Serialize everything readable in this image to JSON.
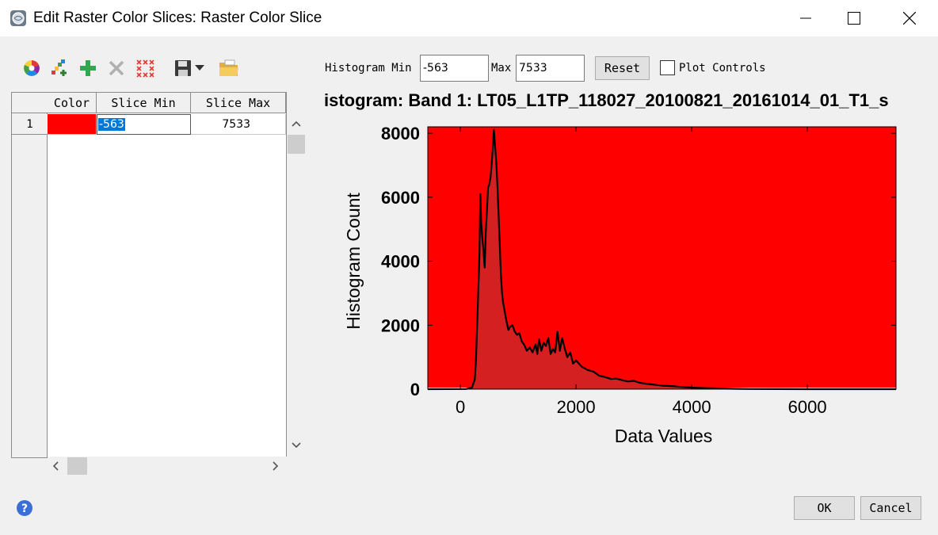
{
  "window": {
    "title": "Edit Raster Color Slices: Raster Color Slice",
    "icon": "app-globe-icon",
    "controls": [
      "minimize-icon",
      "maximize-icon",
      "close-icon"
    ]
  },
  "toolbar": {
    "icons": [
      "color-wheel-icon",
      "color-ramp-icon",
      "add-icon",
      "delete-icon",
      "clear-all-icon",
      "save-icon",
      "dropdown-arrow-icon",
      "open-folder-icon"
    ]
  },
  "table": {
    "columns": [
      "Color",
      "Slice Min",
      "Slice Max"
    ],
    "rows": [
      {
        "index": "1",
        "color": "#ff0000",
        "slice_min": "-563",
        "slice_max": "7533"
      }
    ]
  },
  "histogram_controls": {
    "min_label": "Histogram Min",
    "min_value": "-563",
    "max_label": "Max",
    "max_value": "7533",
    "reset_label": "Reset",
    "plot_controls_label": "Plot Controls",
    "plot_controls_checked": false
  },
  "chart_data": {
    "type": "area",
    "title": "istogram: Band 1: LT05_L1TP_118027_20100821_20161014_01_T1_s",
    "xlabel": "Data Values",
    "ylabel": "Histogram Count",
    "xlim": [
      -563,
      7533
    ],
    "ylim": [
      0,
      8200
    ],
    "xticks": [
      0,
      2000,
      4000,
      6000
    ],
    "yticks": [
      0,
      2000,
      4000,
      6000,
      8000
    ],
    "slice_band": {
      "min": -563,
      "max": 7533,
      "color": "#ff0000"
    },
    "area_color": "#d42020",
    "line_color": "#000000",
    "series": [
      {
        "x": [
          -563,
          100,
          200,
          250,
          270,
          300,
          330,
          345,
          360,
          380,
          400,
          420,
          440,
          460,
          480,
          500,
          520,
          540,
          560,
          580,
          600,
          620,
          640,
          660,
          680,
          700,
          720,
          740,
          760,
          780,
          800,
          830,
          860,
          900,
          940,
          980,
          1020,
          1060,
          1100,
          1150,
          1200,
          1250,
          1300,
          1330,
          1360,
          1400,
          1440,
          1480,
          1520,
          1560,
          1600,
          1640,
          1680,
          1720,
          1760,
          1800,
          1850,
          1900,
          1950,
          2000,
          2100,
          2200,
          2300,
          2400,
          2500,
          2600,
          2700,
          2800,
          2900,
          3000,
          3100,
          3200,
          3300,
          3400,
          3500,
          3600,
          3700,
          3800,
          3900,
          4000,
          4200,
          4400,
          4600,
          4800,
          5000,
          5500,
          6000,
          6500,
          7000,
          7533
        ],
        "values": [
          0,
          5,
          50,
          300,
          900,
          2500,
          4200,
          6100,
          5200,
          4700,
          4300,
          3800,
          4900,
          5600,
          6300,
          6400,
          6600,
          7000,
          7500,
          8100,
          7600,
          7100,
          6400,
          5500,
          4600,
          3600,
          3000,
          2700,
          2500,
          2300,
          2100,
          1850,
          1950,
          2000,
          1800,
          1700,
          1750,
          1500,
          1400,
          1200,
          1300,
          1150,
          1400,
          1100,
          1550,
          1200,
          1450,
          1350,
          1600,
          1100,
          1250,
          1150,
          1800,
          1200,
          1600,
          1300,
          1000,
          1150,
          800,
          900,
          700,
          600,
          550,
          420,
          380,
          320,
          330,
          280,
          240,
          260,
          200,
          170,
          150,
          130,
          110,
          100,
          90,
          70,
          60,
          50,
          35,
          25,
          15,
          10,
          6,
          3,
          1,
          0,
          0,
          0
        ]
      }
    ]
  },
  "footer": {
    "help_icon": "help-icon",
    "ok_label": "OK",
    "cancel_label": "Cancel"
  }
}
